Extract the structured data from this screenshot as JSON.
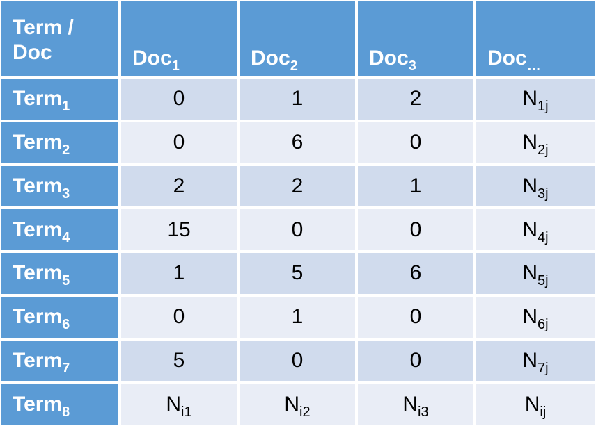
{
  "header": {
    "corner": [
      "Term /",
      "Doc"
    ],
    "columns": [
      {
        "base": "Doc",
        "sub": "1"
      },
      {
        "base": "Doc",
        "sub": "2"
      },
      {
        "base": "Doc",
        "sub": "3"
      },
      {
        "base": "Doc",
        "sub": "…"
      }
    ]
  },
  "rows": [
    {
      "term": {
        "base": "Term",
        "sub": "1"
      },
      "cells": [
        {
          "base": "0"
        },
        {
          "base": "1"
        },
        {
          "base": "2"
        },
        {
          "base": "N",
          "sub": "1j"
        }
      ]
    },
    {
      "term": {
        "base": "Term",
        "sub": "2"
      },
      "cells": [
        {
          "base": "0"
        },
        {
          "base": "6"
        },
        {
          "base": "0"
        },
        {
          "base": "N",
          "sub": "2j"
        }
      ]
    },
    {
      "term": {
        "base": "Term",
        "sub": "3"
      },
      "cells": [
        {
          "base": "2"
        },
        {
          "base": "2"
        },
        {
          "base": "1"
        },
        {
          "base": "N",
          "sub": "3j"
        }
      ]
    },
    {
      "term": {
        "base": "Term",
        "sub": "4"
      },
      "cells": [
        {
          "base": "15"
        },
        {
          "base": "0"
        },
        {
          "base": "0"
        },
        {
          "base": "N",
          "sub": "4j"
        }
      ]
    },
    {
      "term": {
        "base": "Term",
        "sub": "5"
      },
      "cells": [
        {
          "base": "1"
        },
        {
          "base": "5"
        },
        {
          "base": "6"
        },
        {
          "base": "N",
          "sub": "5j"
        }
      ]
    },
    {
      "term": {
        "base": "Term",
        "sub": "6"
      },
      "cells": [
        {
          "base": "0"
        },
        {
          "base": "1"
        },
        {
          "base": "0"
        },
        {
          "base": "N",
          "sub": "6j"
        }
      ]
    },
    {
      "term": {
        "base": "Term",
        "sub": "7"
      },
      "cells": [
        {
          "base": "5"
        },
        {
          "base": "0"
        },
        {
          "base": "0"
        },
        {
          "base": "N",
          "sub": "7j"
        }
      ]
    },
    {
      "term": {
        "base": "Term",
        "sub": "8"
      },
      "cells": [
        {
          "base": "N",
          "sub": "i1"
        },
        {
          "base": "N",
          "sub": "i2"
        },
        {
          "base": "N",
          "sub": "i3"
        },
        {
          "base": "N",
          "sub": "ij"
        }
      ]
    }
  ],
  "colors": {
    "header_fill": "#5b9bd5",
    "band_dark": "#d0dbed",
    "band_light": "#e9edf6",
    "header_text": "#ffffff",
    "body_text": "#000000"
  }
}
